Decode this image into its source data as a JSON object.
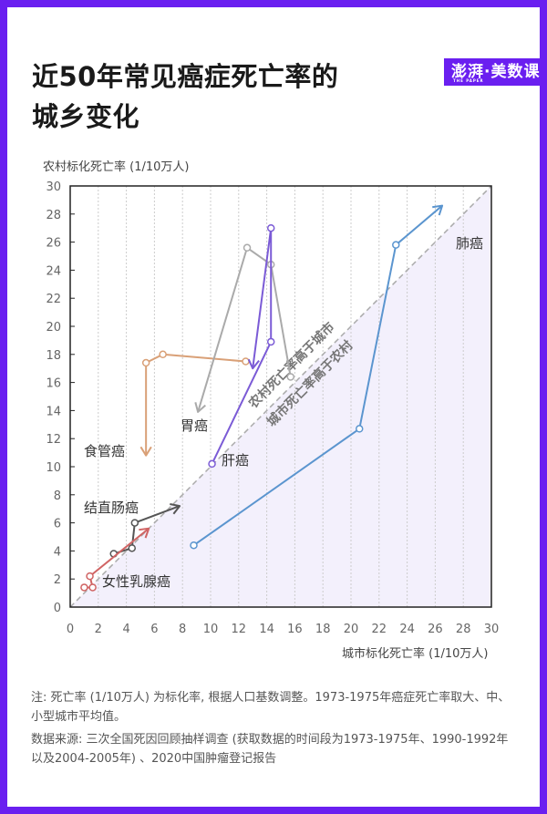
{
  "title_line1": "近50年常见癌症死亡率的",
  "title_line2": "城乡变化",
  "logo": {
    "text": "澎湃·美数课",
    "sub": "THE PAPER"
  },
  "colors": {
    "border": "#6a1ff0",
    "region": "#f3f0fc",
    "esophageal": "#d9a077",
    "stomach": "#aaaaaa",
    "liver": "#7b5bd6",
    "lung": "#5b95cf",
    "colorectal": "#555555",
    "breast": "#d06464"
  },
  "note": "注: 死亡率 (1/10万人) 为标化率, 根据人口基数调整。1973-1975年癌症死亡率取大、中、小型城市平均值。",
  "source": "数据来源: 三次全国死因回顾抽样调查 (获取数据的时间段为1973-1975年、1990-1992年以及2004-2005年) 、2020中国肿瘤登记报告",
  "chart_data": {
    "type": "line",
    "title": "近50年常见癌症死亡率的城乡变化",
    "xlabel": "城市标化死亡率 (1/10万人)",
    "ylabel": "农村标化死亡率 (1/10万人)",
    "xlim": [
      0,
      30
    ],
    "ylim": [
      0,
      30
    ],
    "xticks": [
      0,
      2,
      4,
      6,
      8,
      10,
      12,
      14,
      16,
      18,
      20,
      22,
      24,
      26,
      28,
      30
    ],
    "yticks": [
      0,
      2,
      4,
      6,
      8,
      10,
      12,
      14,
      16,
      18,
      20,
      22,
      24,
      26,
      28,
      30
    ],
    "grid": "vertical dotted",
    "annotations": {
      "above_diagonal": "农村死亡率高于城市",
      "below_diagonal": "城市死亡率高于农村"
    },
    "series": [
      {
        "name": "食管癌",
        "color": "#d9a077",
        "points": [
          [
            12.5,
            17.5
          ],
          [
            6.6,
            18.0
          ],
          [
            5.4,
            17.4
          ],
          [
            5.4,
            10.8
          ]
        ]
      },
      {
        "name": "胃癌",
        "color": "#aaaaaa",
        "points": [
          [
            15.7,
            16.4
          ],
          [
            14.3,
            24.4
          ],
          [
            12.6,
            25.6
          ],
          [
            9.1,
            13.9
          ]
        ]
      },
      {
        "name": "肝癌",
        "color": "#7b5bd6",
        "points": [
          [
            10.1,
            10.2
          ],
          [
            14.3,
            18.9
          ],
          [
            14.3,
            27.0
          ],
          [
            13.0,
            17.0
          ]
        ]
      },
      {
        "name": "肺癌",
        "color": "#5b95cf",
        "points": [
          [
            8.8,
            4.4
          ],
          [
            20.6,
            12.7
          ],
          [
            23.2,
            25.8
          ],
          [
            26.5,
            28.6
          ]
        ]
      },
      {
        "name": "结直肠癌",
        "color": "#555555",
        "points": [
          [
            3.1,
            3.8
          ],
          [
            4.4,
            4.2
          ],
          [
            4.6,
            6.0
          ],
          [
            7.8,
            7.2
          ]
        ]
      },
      {
        "name": "女性乳腺癌",
        "color": "#d06464",
        "points": [
          [
            1.0,
            1.4
          ],
          [
            1.6,
            1.4
          ],
          [
            1.4,
            2.2
          ],
          [
            5.6,
            5.6
          ]
        ]
      }
    ]
  }
}
